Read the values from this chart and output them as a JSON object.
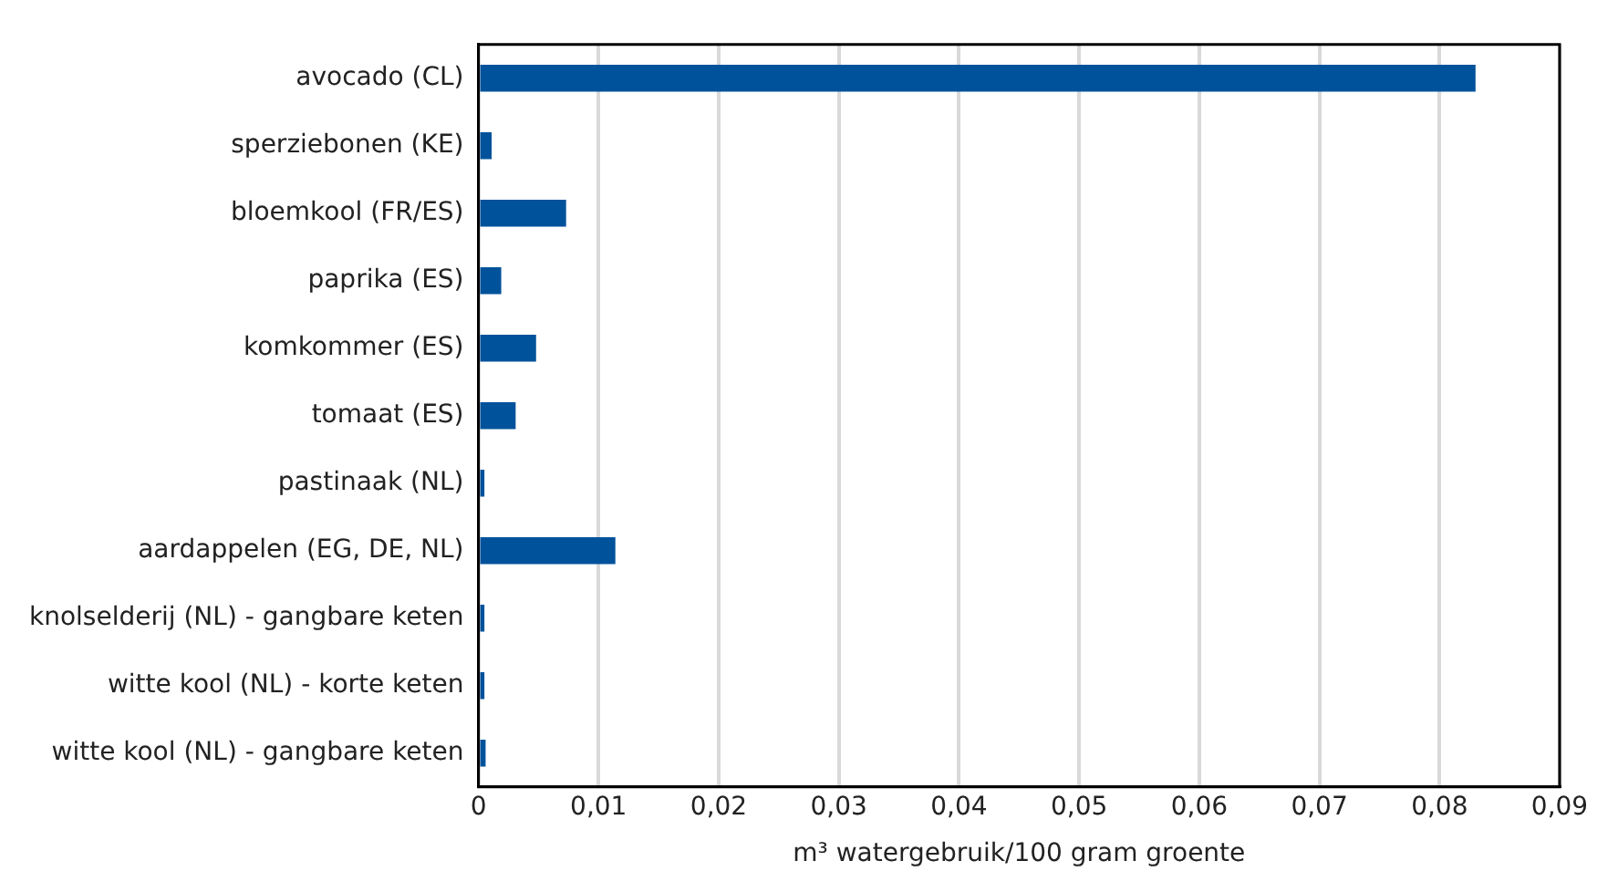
{
  "chart_data": {
    "type": "bar",
    "orientation": "horizontal",
    "xlabel": "m³ watergebruik/100 gram groente",
    "categories": [
      "avocado (CL)",
      "sperziebonen (KE)",
      "bloemkool (FR/ES)",
      "paprika (ES)",
      "komkommer (ES)",
      "tomaat (ES)",
      "pastinaak (NL)",
      "aardappelen (EG, DE, NL)",
      "knolselderij (NL) - gangbare keten",
      "witte kool (NL) - korte keten",
      "witte kool (NL) - gangbare keten"
    ],
    "values": [
      0.083,
      0.0011,
      0.0073,
      0.0019,
      0.0048,
      0.0031,
      0.0005,
      0.0114,
      0.0005,
      0.0005,
      0.0006
    ],
    "color": "#00529b",
    "xlim": [
      0,
      0.09
    ],
    "xticks": [
      0,
      {
        "value": 0.01,
        "label": "0,01"
      },
      {
        "value": 0.02,
        "label": "0,02"
      },
      {
        "value": 0.03,
        "label": "0,03"
      },
      {
        "value": 0.04,
        "label": "0,04"
      },
      {
        "value": 0.05,
        "label": "0,05"
      },
      {
        "value": 0.06,
        "label": "0,06"
      },
      {
        "value": 0.07,
        "label": "0,07"
      },
      {
        "value": 0.08,
        "label": "0,08"
      },
      {
        "value": 0.09,
        "label": "0,09"
      }
    ],
    "grid": "x",
    "legend": false
  }
}
